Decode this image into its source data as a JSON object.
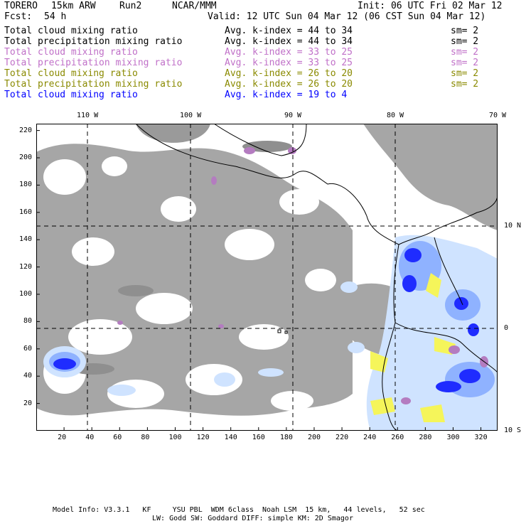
{
  "header": {
    "model": "TORERO",
    "grid": "15km ARW",
    "run": "Run2",
    "org": "NCAR/MMM",
    "init": "Init: 06 UTC Fri 02 Mar 12",
    "fcst_label": "Fcst:",
    "fcst_value": "54 h",
    "valid": "Valid: 12 UTC Sun 04 Mar 12 (06 CST Sun 04 Mar 12)"
  },
  "legend": [
    {
      "field": "Total cloud mixing ratio",
      "kindex": "Avg. k-index = 44 to 34",
      "sm": "sm= 2",
      "color": "#000000"
    },
    {
      "field": "Total precipitation mixing ratio",
      "kindex": "Avg. k-index = 44 to 34",
      "sm": "sm= 2",
      "color": "#000000"
    },
    {
      "field": "Total cloud mixing ratio",
      "kindex": "Avg. k-index = 33 to 25",
      "sm": "sm= 2",
      "color": "#c070c8"
    },
    {
      "field": "Total precipitation mixing ratio",
      "kindex": "Avg. k-index = 33 to 25",
      "sm": "sm= 2",
      "color": "#c070c8"
    },
    {
      "field": "Total cloud mixing ratio",
      "kindex": "Avg. k-index = 26 to 20",
      "sm": "sm= 2",
      "color": "#8a8a00"
    },
    {
      "field": "Total precipitation mixing ratio",
      "kindex": "Avg. k-index = 26 to 20",
      "sm": "sm= 2",
      "color": "#8a8a00"
    },
    {
      "field": "Total cloud mixing ratio",
      "kindex": "Avg. k-index = 19 to 4",
      "sm": "",
      "color": "#0000ff"
    }
  ],
  "map": {
    "lon_labels": [
      "110 W",
      "100 W",
      "90 W",
      "80 W",
      "70 W"
    ],
    "lon_values": [
      -110,
      -100,
      -90,
      -80,
      -70
    ],
    "lat_labels": [
      "10 N",
      "0",
      "10 S"
    ],
    "lat_values": [
      10,
      0,
      -10
    ],
    "x_ticks": [
      20,
      40,
      60,
      80,
      100,
      120,
      140,
      160,
      180,
      200,
      220,
      240,
      260,
      280,
      300,
      320
    ],
    "y_ticks": [
      20,
      40,
      60,
      80,
      100,
      120,
      140,
      160,
      180,
      200,
      220
    ],
    "x_range": [
      0,
      332
    ],
    "y_range": [
      0,
      225
    ],
    "colors": {
      "cloud_gray": "#a6a6a6",
      "light_blue": "#cfe3ff",
      "mid_blue": "#8fb2ff",
      "deep_blue": "#1f2cff",
      "yellow": "#f5f55a",
      "purple": "#b47cc0",
      "grid": "#000000"
    }
  },
  "footer": {
    "line1": "Model Info: V3.3.1   KF     YSU PBL  WDM 6class  Noah LSM  15 km,   44 levels,   52 sec",
    "line2": "LW: Godd SW: Goddard DIFF: simple KM: 2D Smagor"
  }
}
